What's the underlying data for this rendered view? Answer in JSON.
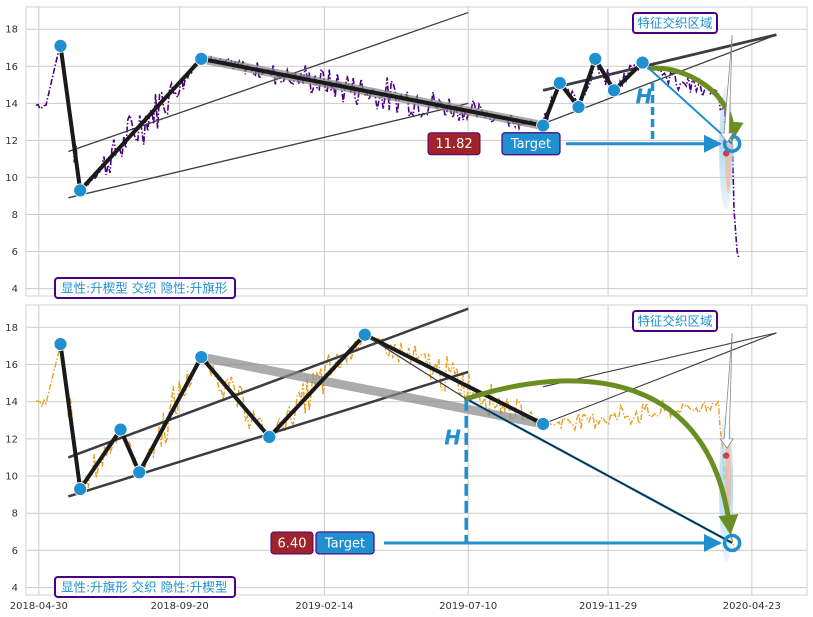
{
  "chart_data": [
    {
      "type": "line",
      "panel": "top",
      "ylim": [
        3.6,
        19.2
      ],
      "yticks": [
        4,
        6,
        8,
        10,
        12,
        14,
        16,
        18
      ],
      "series_color": "#4b0082",
      "label_box": "显性:升楔型 交织 隐性:升旗形",
      "zone_label": "特征交织区域",
      "target_value": "11.82",
      "target_label": "Target",
      "height_label": "H",
      "pivots": [
        {
          "date": "2018-05-22",
          "y": 17.1
        },
        {
          "date": "2018-06-11",
          "y": 9.3
        },
        {
          "date": "2018-10-12",
          "y": 16.4
        },
        {
          "date": "2019-09-24",
          "y": 12.8
        },
        {
          "date": "2019-10-11",
          "y": 15.1
        },
        {
          "date": "2019-10-30",
          "y": 13.8
        },
        {
          "date": "2019-11-16",
          "y": 16.4
        },
        {
          "date": "2019-12-05",
          "y": 14.7
        },
        {
          "date": "2020-01-03",
          "y": 16.2
        },
        {
          "date": "2020-04-03",
          "y": 11.82
        }
      ]
    },
    {
      "type": "line",
      "panel": "bottom",
      "ylim": [
        3.6,
        19.2
      ],
      "yticks": [
        4,
        6,
        8,
        10,
        12,
        14,
        16,
        18
      ],
      "series_color": "#e8a020",
      "label_box": "显性:升旗形 交织 隐性:升楔型",
      "zone_label": "特征交织区域",
      "target_value": "6.40",
      "target_label": "Target",
      "height_label": "H",
      "pivots": [
        {
          "date": "2018-05-22",
          "y": 17.1
        },
        {
          "date": "2018-06-11",
          "y": 9.3
        },
        {
          "date": "2018-07-22",
          "y": 12.5
        },
        {
          "date": "2018-08-10",
          "y": 10.2
        },
        {
          "date": "2018-10-12",
          "y": 16.4
        },
        {
          "date": "2018-12-20",
          "y": 12.1
        },
        {
          "date": "2019-03-27",
          "y": 17.6
        },
        {
          "date": "2019-09-24",
          "y": 12.8
        },
        {
          "date": "2020-04-03",
          "y": 6.4
        }
      ]
    }
  ],
  "x_ticks": [
    "2018-04-30",
    "2018-09-20",
    "2019-02-14",
    "2019-07-10",
    "2019-11-29",
    "2020-04-23"
  ],
  "x_range": [
    "2018-04-17",
    "2020-06-18"
  ]
}
